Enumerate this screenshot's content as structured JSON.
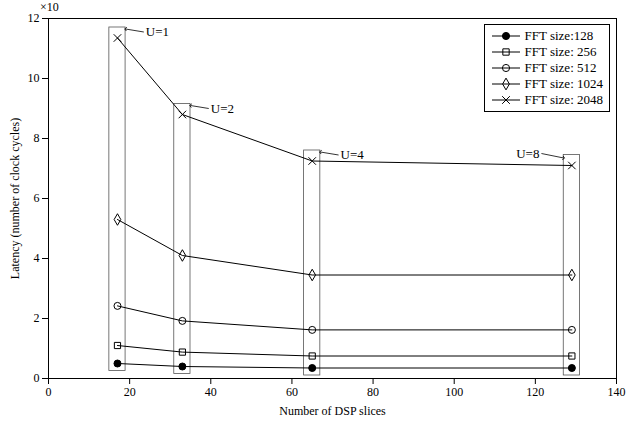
{
  "chart_data": {
    "type": "line",
    "x_label": "Number of DSP slices",
    "y_label": "Latency (number of clock cycles)",
    "y_multiplier": "×10",
    "x": [
      17,
      33,
      65,
      129
    ],
    "xlim": [
      0,
      140
    ],
    "xticks": [
      0,
      20,
      40,
      60,
      80,
      100,
      120,
      140
    ],
    "ylim": [
      0,
      12
    ],
    "yticks": [
      0,
      2,
      4,
      6,
      8,
      10,
      12
    ],
    "grid": false,
    "legend": "upper right",
    "series": [
      {
        "name": "FFT size:128",
        "color": "#000000",
        "marker": "filled_circle",
        "values": [
          0.5,
          0.4,
          0.35,
          0.35
        ]
      },
      {
        "name": "FFT size: 256",
        "color": "#000000",
        "marker": "square",
        "values": [
          1.1,
          0.88,
          0.75,
          0.75
        ]
      },
      {
        "name": "FFT size: 512",
        "color": "#000000",
        "marker": "circle",
        "values": [
          2.42,
          1.92,
          1.62,
          1.62
        ]
      },
      {
        "name": "FFT size: 1024",
        "color": "#000000",
        "marker": "diamond",
        "values": [
          5.3,
          4.1,
          3.45,
          3.45
        ]
      },
      {
        "name": "FFT size: 2048",
        "color": "#000000",
        "marker": "x",
        "values": [
          11.35,
          8.8,
          7.25,
          7.1
        ]
      }
    ],
    "annotations": [
      {
        "text": "U=1",
        "x": 17
      },
      {
        "text": "U=2",
        "x": 33
      },
      {
        "text": "U=4",
        "x": 65
      },
      {
        "text": "U=8",
        "x": 129
      }
    ]
  }
}
